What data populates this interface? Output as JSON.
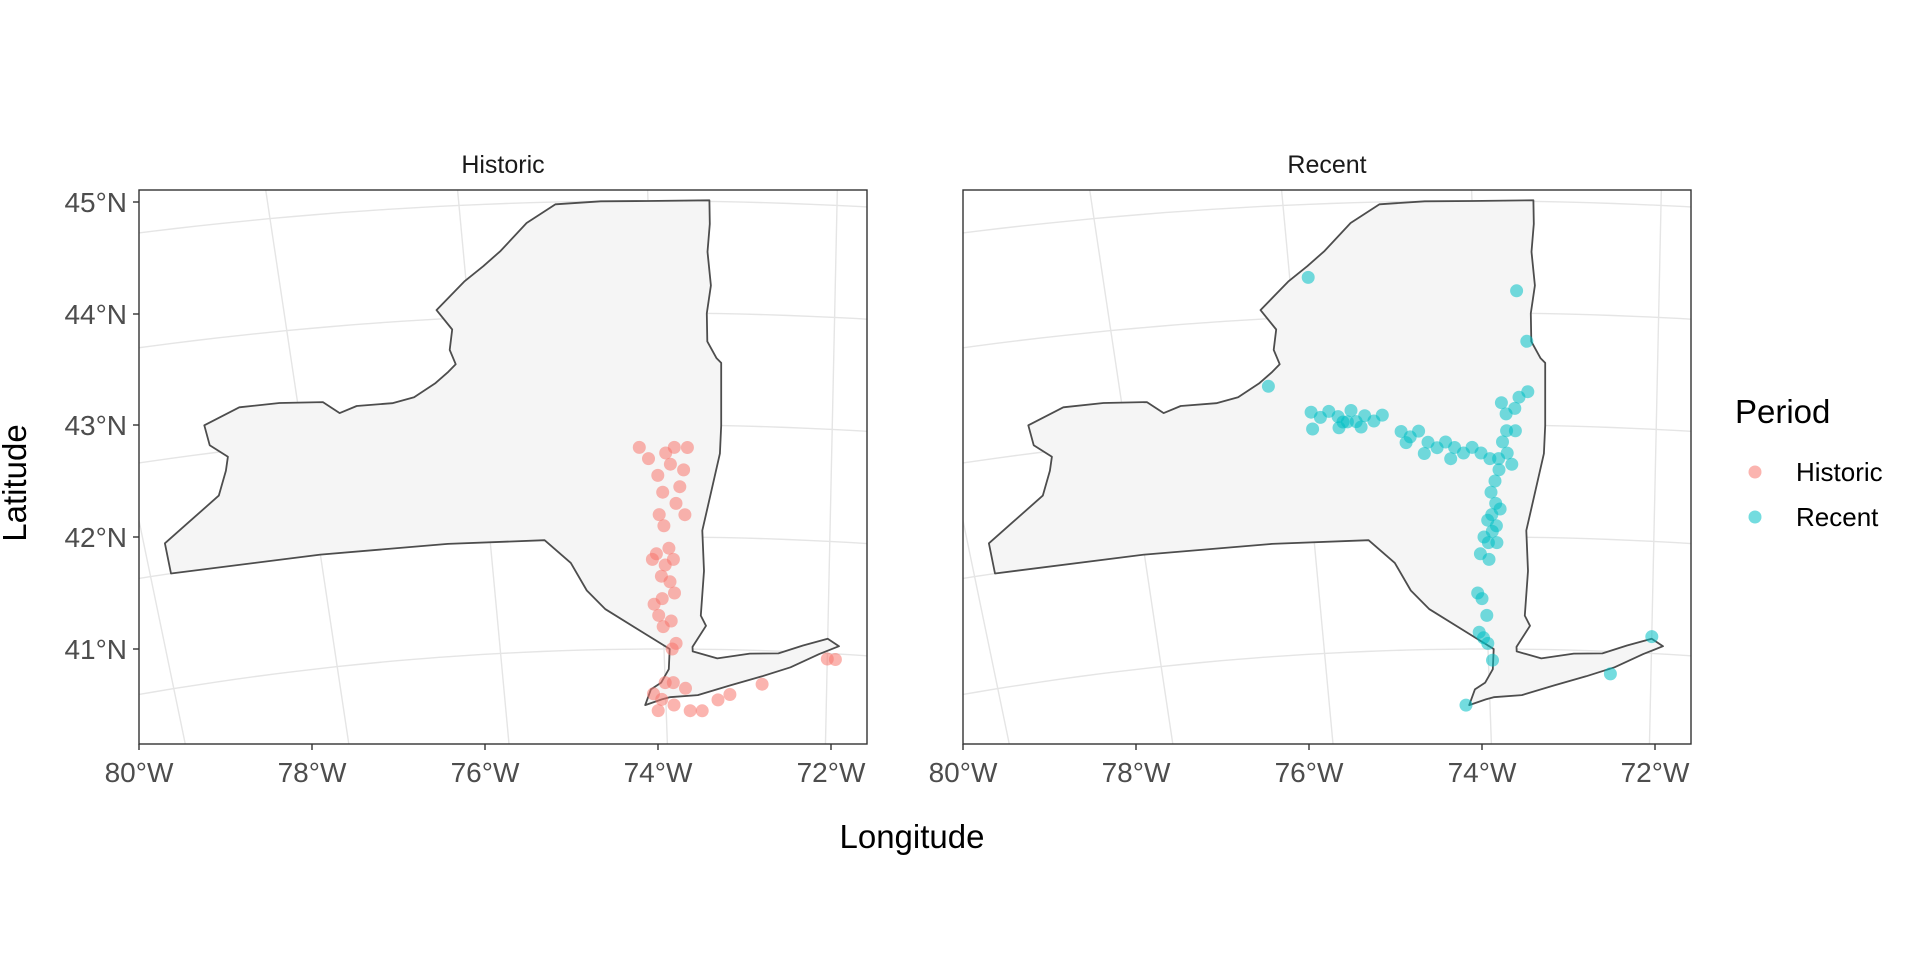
{
  "chart_data": {
    "type": "scatter",
    "xlabel": "Longitude",
    "ylabel": "Latitude",
    "x_ticks": [
      "80°W",
      "78°W",
      "76°W",
      "74°W",
      "72°W"
    ],
    "y_ticks": [
      "41°N",
      "42°N",
      "43°N",
      "44°N",
      "45°N"
    ],
    "xlim": [
      -80,
      -71.5
    ],
    "ylim": [
      40.2,
      45.2
    ],
    "legend": {
      "title": "Period",
      "position": "right",
      "entries": [
        {
          "label": "Historic",
          "color": "#F8766D"
        },
        {
          "label": "Recent",
          "color": "#00BFC4"
        }
      ]
    },
    "panels": [
      {
        "title": "Historic",
        "color": "#F8766D",
        "points": [
          [
            -74.2,
            42.8
          ],
          [
            -74.1,
            42.7
          ],
          [
            -73.9,
            42.75
          ],
          [
            -73.8,
            42.8
          ],
          [
            -73.65,
            42.8
          ],
          [
            -73.7,
            42.6
          ],
          [
            -73.85,
            42.65
          ],
          [
            -74.0,
            42.55
          ],
          [
            -73.75,
            42.45
          ],
          [
            -73.95,
            42.4
          ],
          [
            -73.8,
            42.3
          ],
          [
            -74.0,
            42.2
          ],
          [
            -73.7,
            42.2
          ],
          [
            -73.95,
            42.1
          ],
          [
            -73.9,
            41.9
          ],
          [
            -74.05,
            41.85
          ],
          [
            -73.85,
            41.8
          ],
          [
            -73.95,
            41.75
          ],
          [
            -74.1,
            41.8
          ],
          [
            -74.0,
            41.65
          ],
          [
            -73.9,
            41.6
          ],
          [
            -73.85,
            41.5
          ],
          [
            -74.0,
            41.45
          ],
          [
            -74.1,
            41.4
          ],
          [
            -74.05,
            41.3
          ],
          [
            -73.9,
            41.25
          ],
          [
            -74.0,
            41.2
          ],
          [
            -73.85,
            41.05
          ],
          [
            -73.9,
            41.0
          ],
          [
            -74.0,
            40.7
          ],
          [
            -73.9,
            40.7
          ],
          [
            -74.15,
            40.6
          ],
          [
            -74.05,
            40.55
          ],
          [
            -73.75,
            40.65
          ],
          [
            -73.9,
            40.5
          ],
          [
            -74.1,
            40.45
          ],
          [
            -73.7,
            40.45
          ],
          [
            -73.55,
            40.45
          ],
          [
            -73.35,
            40.55
          ],
          [
            -73.2,
            40.6
          ],
          [
            -72.8,
            40.7
          ],
          [
            -72.0,
            40.95
          ],
          [
            -71.9,
            40.95
          ]
        ]
      },
      {
        "title": "Recent",
        "color": "#00BFC4",
        "points": [
          [
            -75.8,
            44.35
          ],
          [
            -73.55,
            44.2
          ],
          [
            -73.45,
            43.75
          ],
          [
            -76.35,
            43.4
          ],
          [
            -75.9,
            43.15
          ],
          [
            -75.8,
            43.1
          ],
          [
            -75.7,
            43.15
          ],
          [
            -75.6,
            43.1
          ],
          [
            -75.5,
            43.05
          ],
          [
            -75.45,
            43.15
          ],
          [
            -75.4,
            43.05
          ],
          [
            -75.3,
            43.1
          ],
          [
            -75.2,
            43.05
          ],
          [
            -75.1,
            43.1
          ],
          [
            -75.6,
            43.0
          ],
          [
            -75.9,
            43.0
          ],
          [
            -75.55,
            43.05
          ],
          [
            -75.35,
            43.0
          ],
          [
            -74.9,
            42.95
          ],
          [
            -74.8,
            42.9
          ],
          [
            -74.7,
            42.95
          ],
          [
            -74.6,
            42.85
          ],
          [
            -74.5,
            42.8
          ],
          [
            -74.4,
            42.85
          ],
          [
            -74.3,
            42.8
          ],
          [
            -74.2,
            42.75
          ],
          [
            -74.1,
            42.8
          ],
          [
            -74.0,
            42.75
          ],
          [
            -73.9,
            42.7
          ],
          [
            -73.8,
            42.7
          ],
          [
            -73.7,
            42.75
          ],
          [
            -73.65,
            42.65
          ],
          [
            -74.85,
            42.85
          ],
          [
            -74.65,
            42.75
          ],
          [
            -74.35,
            42.7
          ],
          [
            -73.75,
            42.85
          ],
          [
            -73.7,
            42.95
          ],
          [
            -73.6,
            42.95
          ],
          [
            -73.7,
            43.1
          ],
          [
            -73.75,
            43.2
          ],
          [
            -73.55,
            43.25
          ],
          [
            -73.45,
            43.3
          ],
          [
            -73.6,
            43.15
          ],
          [
            -73.8,
            42.6
          ],
          [
            -73.85,
            42.5
          ],
          [
            -73.9,
            42.4
          ],
          [
            -73.85,
            42.3
          ],
          [
            -73.8,
            42.25
          ],
          [
            -73.9,
            42.2
          ],
          [
            -73.95,
            42.15
          ],
          [
            -73.85,
            42.1
          ],
          [
            -73.9,
            42.05
          ],
          [
            -74.0,
            42.0
          ],
          [
            -73.95,
            41.95
          ],
          [
            -73.85,
            41.95
          ],
          [
            -74.05,
            41.85
          ],
          [
            -73.95,
            41.8
          ],
          [
            -74.1,
            41.5
          ],
          [
            -74.05,
            41.45
          ],
          [
            -74.0,
            41.3
          ],
          [
            -74.1,
            41.15
          ],
          [
            -74.05,
            41.1
          ],
          [
            -74.0,
            41.05
          ],
          [
            -73.95,
            40.9
          ],
          [
            -74.3,
            40.5
          ],
          [
            -72.5,
            40.8
          ],
          [
            -72.0,
            41.15
          ]
        ]
      }
    ]
  }
}
